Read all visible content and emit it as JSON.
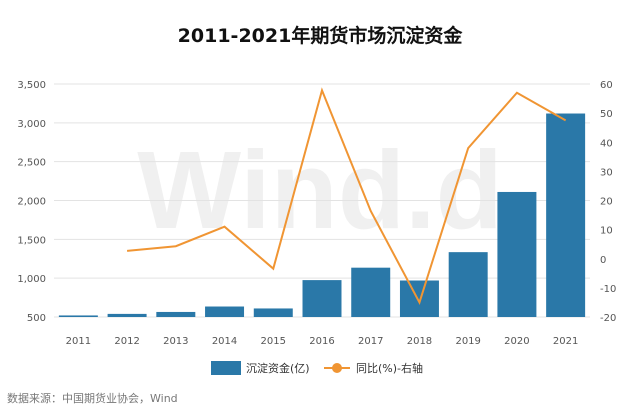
{
  "watermark": "Wind.d",
  "source": "数据来源：中国期货业协会，Wind",
  "colors": {
    "bar": "#2a78a8",
    "line": "#f09533",
    "grid": "#e3e3e3"
  },
  "chart_data": {
    "type": "bar",
    "title": "2011-2021年期货市场沉淀资金",
    "categories": [
      "2011",
      "2012",
      "2013",
      "2014",
      "2015",
      "2016",
      "2017",
      "2018",
      "2019",
      "2020",
      "2021"
    ],
    "series": [
      {
        "name": "沉淀资金(亿)",
        "type": "bar",
        "axis": "left",
        "values": [
          520,
          540,
          565,
          635,
          610,
          975,
          1135,
          970,
          1335,
          2110,
          3120
        ]
      },
      {
        "name": "同比(%)-右轴",
        "type": "line",
        "axis": "right",
        "values": [
          null,
          2.7,
          4.3,
          11.0,
          -3.4,
          57.8,
          16.4,
          -15.0,
          38.0,
          57.0,
          47.5
        ]
      }
    ],
    "ylim_left": [
      500,
      3500
    ],
    "yticks_left": [
      "500",
      "1,000",
      "1,500",
      "2,000",
      "2,500",
      "3,000",
      "3,500"
    ],
    "yticks_left_values": [
      500,
      1000,
      1500,
      2000,
      2500,
      3000,
      3500
    ],
    "ylim_right": [
      -20,
      60
    ],
    "yticks_right": [
      "-20",
      "-10",
      "0",
      "10",
      "20",
      "30",
      "40",
      "50",
      "60"
    ],
    "yticks_right_values": [
      -20,
      -10,
      0,
      10,
      20,
      30,
      40,
      50,
      60
    ],
    "grid": true,
    "legend_position": "bottom-center"
  }
}
